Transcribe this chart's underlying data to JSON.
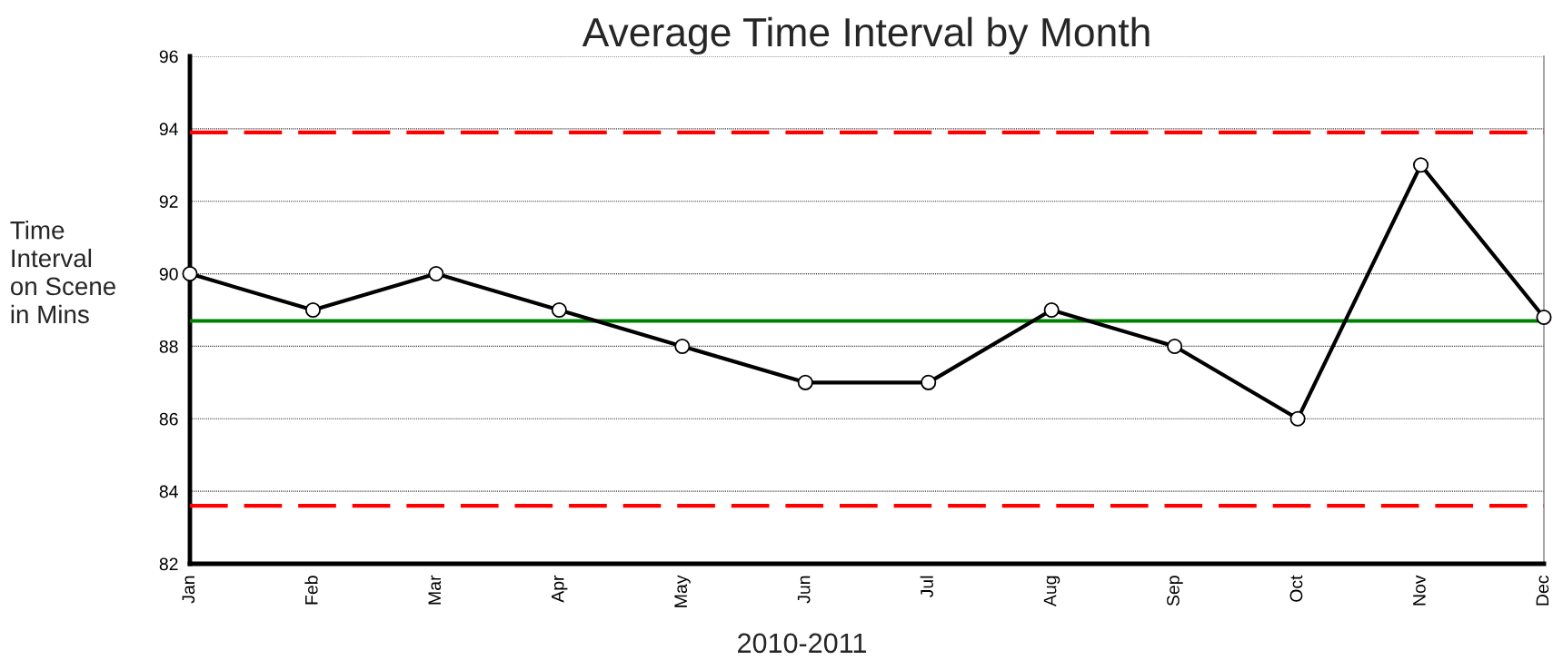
{
  "chart_data": {
    "type": "line",
    "title": "Average Time Interval by Month",
    "xlabel": "2010-2011",
    "ylabel": "Time Interval on Scene in Mins",
    "categories": [
      "Jan",
      "Feb",
      "Mar",
      "Apr",
      "May",
      "Jun",
      "Jul",
      "Aug",
      "Sep",
      "Oct",
      "Nov",
      "Dec"
    ],
    "series": [
      {
        "color": "#000000",
        "values": [
          90,
          89,
          90,
          89,
          88,
          87,
          87,
          89,
          88,
          86,
          93,
          88.8
        ]
      }
    ],
    "ylim": [
      82,
      96
    ],
    "yticks": [
      82,
      84,
      86,
      88,
      90,
      92,
      94,
      96
    ],
    "grid": "y",
    "marker": "circle",
    "line_style": "solid",
    "ref_lines": [
      {
        "axis": "y",
        "value": 93.9,
        "color": "#ff0000",
        "line_style": "dashed"
      },
      {
        "axis": "y",
        "value": 88.7,
        "color": "#008000",
        "line_style": "solid"
      },
      {
        "axis": "y",
        "value": 83.6,
        "color": "#ff0000",
        "line_style": "dashed"
      }
    ]
  }
}
